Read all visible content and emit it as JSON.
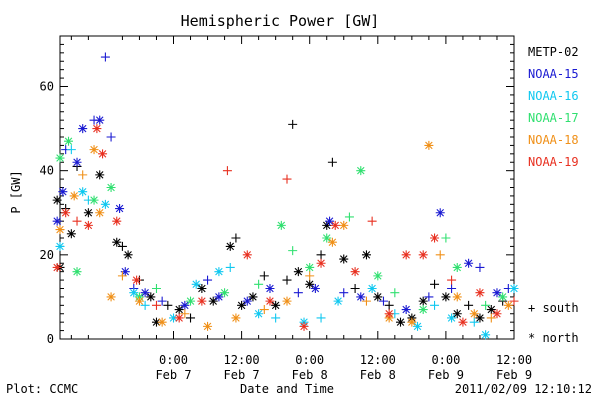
{
  "chart_data": {
    "type": "scatter",
    "title": "Hemispheric Power [GW]",
    "ylabel": "P [GW]",
    "xlabel": "Date and Time",
    "ylim": [
      0,
      72
    ],
    "xlim_hours": [
      -20,
      60
    ],
    "y_ticks": [
      {
        "value": 0,
        "label": "0"
      },
      {
        "value": 20,
        "label": "20"
      },
      {
        "value": 40,
        "label": "40"
      },
      {
        "value": 60,
        "label": "60"
      }
    ],
    "x_ticks": [
      {
        "value": 0,
        "time": "0:00",
        "date": "Feb 7"
      },
      {
        "value": 12,
        "time": "12:00",
        "date": "Feb 7"
      },
      {
        "value": 24,
        "time": "0:00",
        "date": "Feb 8"
      },
      {
        "value": 36,
        "time": "12:00",
        "date": "Feb 8"
      },
      {
        "value": 48,
        "time": "0:00",
        "date": "Feb 9"
      },
      {
        "value": 60,
        "time": "12:00",
        "date": "Feb 9"
      }
    ],
    "marker_legend": [
      {
        "symbol": "+",
        "label": "+ south"
      },
      {
        "symbol": "*",
        "label": "* north"
      }
    ],
    "footer_left": "Plot: CCMC",
    "footer_right": "2011/02/09 12:10:12",
    "series": [
      {
        "name": "METP-02",
        "color": "#000000",
        "points": [
          {
            "x": -20.5,
            "y": 33,
            "m": "*"
          },
          {
            "x": -20,
            "y": 17,
            "m": "*"
          },
          {
            "x": -19,
            "y": 31,
            "m": "+"
          },
          {
            "x": -18,
            "y": 25,
            "m": "*"
          },
          {
            "x": -17,
            "y": 41,
            "m": "+"
          },
          {
            "x": -15,
            "y": 30,
            "m": "*"
          },
          {
            "x": -13,
            "y": 39,
            "m": "*"
          },
          {
            "x": -10,
            "y": 23,
            "m": "*"
          },
          {
            "x": -9,
            "y": 22,
            "m": "+"
          },
          {
            "x": -8,
            "y": 20,
            "m": "*"
          },
          {
            "x": -6,
            "y": 14,
            "m": "+"
          },
          {
            "x": -4,
            "y": 10,
            "m": "*"
          },
          {
            "x": -3,
            "y": 4,
            "m": "*"
          },
          {
            "x": -1,
            "y": 8,
            "m": "+"
          },
          {
            "x": 1,
            "y": 7,
            "m": "*"
          },
          {
            "x": 3,
            "y": 5,
            "m": "+"
          },
          {
            "x": 5,
            "y": 12,
            "m": "*"
          },
          {
            "x": 7,
            "y": 9,
            "m": "*"
          },
          {
            "x": 10,
            "y": 22,
            "m": "*"
          },
          {
            "x": 11,
            "y": 24,
            "m": "+"
          },
          {
            "x": 12,
            "y": 8,
            "m": "*"
          },
          {
            "x": 14,
            "y": 10,
            "m": "*"
          },
          {
            "x": 16,
            "y": 15,
            "m": "+"
          },
          {
            "x": 18,
            "y": 8,
            "m": "*"
          },
          {
            "x": 20,
            "y": 14,
            "m": "+"
          },
          {
            "x": 21,
            "y": 51,
            "m": "+"
          },
          {
            "x": 22,
            "y": 16,
            "m": "*"
          },
          {
            "x": 24,
            "y": 13,
            "m": "*"
          },
          {
            "x": 26,
            "y": 20,
            "m": "+"
          },
          {
            "x": 27,
            "y": 27,
            "m": "*"
          },
          {
            "x": 28,
            "y": 42,
            "m": "+"
          },
          {
            "x": 30,
            "y": 19,
            "m": "*"
          },
          {
            "x": 32,
            "y": 12,
            "m": "+"
          },
          {
            "x": 34,
            "y": 20,
            "m": "*"
          },
          {
            "x": 36,
            "y": 10,
            "m": "*"
          },
          {
            "x": 38,
            "y": 8,
            "m": "+"
          },
          {
            "x": 40,
            "y": 4,
            "m": "*"
          },
          {
            "x": 42,
            "y": 5,
            "m": "*"
          },
          {
            "x": 44,
            "y": 9,
            "m": "*"
          },
          {
            "x": 46,
            "y": 13,
            "m": "+"
          },
          {
            "x": 48,
            "y": 10,
            "m": "*"
          },
          {
            "x": 50,
            "y": 6,
            "m": "*"
          },
          {
            "x": 52,
            "y": 8,
            "m": "+"
          },
          {
            "x": 54,
            "y": 5,
            "m": "*"
          },
          {
            "x": 56,
            "y": 7,
            "m": "*"
          },
          {
            "x": 58,
            "y": 9,
            "m": "+"
          }
        ]
      },
      {
        "name": "NOAA-15",
        "color": "#1a1ad2",
        "points": [
          {
            "x": -20.5,
            "y": 28,
            "m": "*"
          },
          {
            "x": -19.5,
            "y": 35,
            "m": "*"
          },
          {
            "x": -19,
            "y": 45,
            "m": "+"
          },
          {
            "x": -17,
            "y": 42,
            "m": "*"
          },
          {
            "x": -16,
            "y": 50,
            "m": "*"
          },
          {
            "x": -14,
            "y": 52,
            "m": "+"
          },
          {
            "x": -13,
            "y": 52,
            "m": "*"
          },
          {
            "x": -12,
            "y": 67,
            "m": "+"
          },
          {
            "x": -11,
            "y": 48,
            "m": "+"
          },
          {
            "x": -9.5,
            "y": 31,
            "m": "*"
          },
          {
            "x": -8.5,
            "y": 16,
            "m": "*"
          },
          {
            "x": -7,
            "y": 12,
            "m": "+"
          },
          {
            "x": -5,
            "y": 11,
            "m": "*"
          },
          {
            "x": -2,
            "y": 9,
            "m": "+"
          },
          {
            "x": 2,
            "y": 8,
            "m": "*"
          },
          {
            "x": 6,
            "y": 14,
            "m": "+"
          },
          {
            "x": 8,
            "y": 10,
            "m": "*"
          },
          {
            "x": 13,
            "y": 9,
            "m": "*"
          },
          {
            "x": 17,
            "y": 12,
            "m": "*"
          },
          {
            "x": 22,
            "y": 11,
            "m": "+"
          },
          {
            "x": 25,
            "y": 12,
            "m": "*"
          },
          {
            "x": 27.5,
            "y": 28,
            "m": "*"
          },
          {
            "x": 30,
            "y": 11,
            "m": "+"
          },
          {
            "x": 33,
            "y": 10,
            "m": "*"
          },
          {
            "x": 37,
            "y": 9,
            "m": "+"
          },
          {
            "x": 41,
            "y": 7,
            "m": "*"
          },
          {
            "x": 45,
            "y": 10,
            "m": "+"
          },
          {
            "x": 47,
            "y": 30,
            "m": "*"
          },
          {
            "x": 49,
            "y": 12,
            "m": "+"
          },
          {
            "x": 52,
            "y": 18,
            "m": "*"
          },
          {
            "x": 54,
            "y": 17,
            "m": "+"
          },
          {
            "x": 57,
            "y": 11,
            "m": "*"
          },
          {
            "x": 59,
            "y": 12,
            "m": "+"
          }
        ]
      },
      {
        "name": "NOAA-16",
        "color": "#10c8f0",
        "points": [
          {
            "x": -20,
            "y": 22,
            "m": "*"
          },
          {
            "x": -18,
            "y": 45,
            "m": "+"
          },
          {
            "x": -16,
            "y": 35,
            "m": "*"
          },
          {
            "x": -15,
            "y": 33,
            "m": "+"
          },
          {
            "x": -12,
            "y": 32,
            "m": "*"
          },
          {
            "x": -7,
            "y": 11,
            "m": "*"
          },
          {
            "x": -5,
            "y": 8,
            "m": "+"
          },
          {
            "x": 0,
            "y": 5,
            "m": "*"
          },
          {
            "x": 4,
            "y": 13,
            "m": "*"
          },
          {
            "x": 8,
            "y": 16,
            "m": "*"
          },
          {
            "x": 10,
            "y": 17,
            "m": "+"
          },
          {
            "x": 15,
            "y": 6,
            "m": "*"
          },
          {
            "x": 18,
            "y": 5,
            "m": "+"
          },
          {
            "x": 23,
            "y": 4,
            "m": "*"
          },
          {
            "x": 26,
            "y": 5,
            "m": "+"
          },
          {
            "x": 29,
            "y": 9,
            "m": "*"
          },
          {
            "x": 35,
            "y": 12,
            "m": "*"
          },
          {
            "x": 39,
            "y": 6,
            "m": "+"
          },
          {
            "x": 43,
            "y": 3,
            "m": "*"
          },
          {
            "x": 46,
            "y": 8,
            "m": "+"
          },
          {
            "x": 49,
            "y": 5,
            "m": "*"
          },
          {
            "x": 53,
            "y": 4,
            "m": "+"
          },
          {
            "x": 55,
            "y": 1,
            "m": "*"
          },
          {
            "x": 60,
            "y": 12,
            "m": "*"
          }
        ]
      },
      {
        "name": "NOAA-17",
        "color": "#30e070",
        "points": [
          {
            "x": -20,
            "y": 43,
            "m": "*"
          },
          {
            "x": -18.5,
            "y": 47,
            "m": "*"
          },
          {
            "x": -17,
            "y": 16,
            "m": "*"
          },
          {
            "x": -14,
            "y": 33,
            "m": "*"
          },
          {
            "x": -11,
            "y": 36,
            "m": "*"
          },
          {
            "x": -6,
            "y": 10,
            "m": "*"
          },
          {
            "x": -3,
            "y": 12,
            "m": "+"
          },
          {
            "x": 3,
            "y": 9,
            "m": "*"
          },
          {
            "x": 9,
            "y": 11,
            "m": "*"
          },
          {
            "x": 15,
            "y": 13,
            "m": "+"
          },
          {
            "x": 19,
            "y": 27,
            "m": "*"
          },
          {
            "x": 21,
            "y": 21,
            "m": "+"
          },
          {
            "x": 24,
            "y": 17,
            "m": "*"
          },
          {
            "x": 27,
            "y": 24,
            "m": "*"
          },
          {
            "x": 31,
            "y": 29,
            "m": "+"
          },
          {
            "x": 33,
            "y": 40,
            "m": "*"
          },
          {
            "x": 36,
            "y": 15,
            "m": "*"
          },
          {
            "x": 39,
            "y": 11,
            "m": "+"
          },
          {
            "x": 44,
            "y": 7,
            "m": "*"
          },
          {
            "x": 48,
            "y": 24,
            "m": "+"
          },
          {
            "x": 50,
            "y": 17,
            "m": "*"
          },
          {
            "x": 55,
            "y": 8,
            "m": "+"
          },
          {
            "x": 58,
            "y": 10,
            "m": "*"
          }
        ]
      },
      {
        "name": "NOAA-18",
        "color": "#f09018",
        "points": [
          {
            "x": -20,
            "y": 26,
            "m": "*"
          },
          {
            "x": -17.5,
            "y": 34,
            "m": "*"
          },
          {
            "x": -16,
            "y": 39,
            "m": "+"
          },
          {
            "x": -14,
            "y": 45,
            "m": "*"
          },
          {
            "x": -13,
            "y": 30,
            "m": "*"
          },
          {
            "x": -11,
            "y": 10,
            "m": "*"
          },
          {
            "x": -9,
            "y": 15,
            "m": "+"
          },
          {
            "x": -6,
            "y": 9,
            "m": "*"
          },
          {
            "x": -2,
            "y": 4,
            "m": "*"
          },
          {
            "x": 2,
            "y": 6,
            "m": "+"
          },
          {
            "x": 6,
            "y": 3,
            "m": "*"
          },
          {
            "x": 11,
            "y": 5,
            "m": "*"
          },
          {
            "x": 16,
            "y": 7,
            "m": "+"
          },
          {
            "x": 20,
            "y": 9,
            "m": "*"
          },
          {
            "x": 24,
            "y": 15,
            "m": "+"
          },
          {
            "x": 28,
            "y": 23,
            "m": "*"
          },
          {
            "x": 30,
            "y": 27,
            "m": "*"
          },
          {
            "x": 34,
            "y": 9,
            "m": "+"
          },
          {
            "x": 38,
            "y": 5,
            "m": "*"
          },
          {
            "x": 42,
            "y": 4,
            "m": "*"
          },
          {
            "x": 45,
            "y": 46,
            "m": "*"
          },
          {
            "x": 47,
            "y": 20,
            "m": "+"
          },
          {
            "x": 50,
            "y": 10,
            "m": "*"
          },
          {
            "x": 53,
            "y": 6,
            "m": "*"
          },
          {
            "x": 56,
            "y": 5,
            "m": "+"
          },
          {
            "x": 59,
            "y": 8,
            "m": "*"
          }
        ]
      },
      {
        "name": "NOAA-19",
        "color": "#e83020",
        "points": [
          {
            "x": -20.5,
            "y": 17,
            "m": "*"
          },
          {
            "x": -19,
            "y": 30,
            "m": "*"
          },
          {
            "x": -17,
            "y": 28,
            "m": "+"
          },
          {
            "x": -15,
            "y": 27,
            "m": "*"
          },
          {
            "x": -13.5,
            "y": 50,
            "m": "*"
          },
          {
            "x": -12.5,
            "y": 44,
            "m": "*"
          },
          {
            "x": -10,
            "y": 28,
            "m": "*"
          },
          {
            "x": -6.5,
            "y": 14,
            "m": "*"
          },
          {
            "x": -3,
            "y": 8,
            "m": "+"
          },
          {
            "x": 1,
            "y": 5,
            "m": "*"
          },
          {
            "x": 5,
            "y": 9,
            "m": "*"
          },
          {
            "x": 9.5,
            "y": 40,
            "m": "+"
          },
          {
            "x": 13,
            "y": 20,
            "m": "*"
          },
          {
            "x": 17,
            "y": 9,
            "m": "*"
          },
          {
            "x": 20,
            "y": 38,
            "m": "+"
          },
          {
            "x": 23,
            "y": 3,
            "m": "*"
          },
          {
            "x": 26,
            "y": 18,
            "m": "*"
          },
          {
            "x": 28.5,
            "y": 27,
            "m": "*"
          },
          {
            "x": 32,
            "y": 16,
            "m": "*"
          },
          {
            "x": 35,
            "y": 28,
            "m": "+"
          },
          {
            "x": 38,
            "y": 6,
            "m": "*"
          },
          {
            "x": 41,
            "y": 20,
            "m": "*"
          },
          {
            "x": 44,
            "y": 20,
            "m": "*"
          },
          {
            "x": 46,
            "y": 24,
            "m": "*"
          },
          {
            "x": 49,
            "y": 14,
            "m": "+"
          },
          {
            "x": 51,
            "y": 4,
            "m": "*"
          },
          {
            "x": 54,
            "y": 11,
            "m": "*"
          },
          {
            "x": 57,
            "y": 6,
            "m": "*"
          },
          {
            "x": 60,
            "y": 9,
            "m": "+"
          }
        ]
      }
    ]
  }
}
